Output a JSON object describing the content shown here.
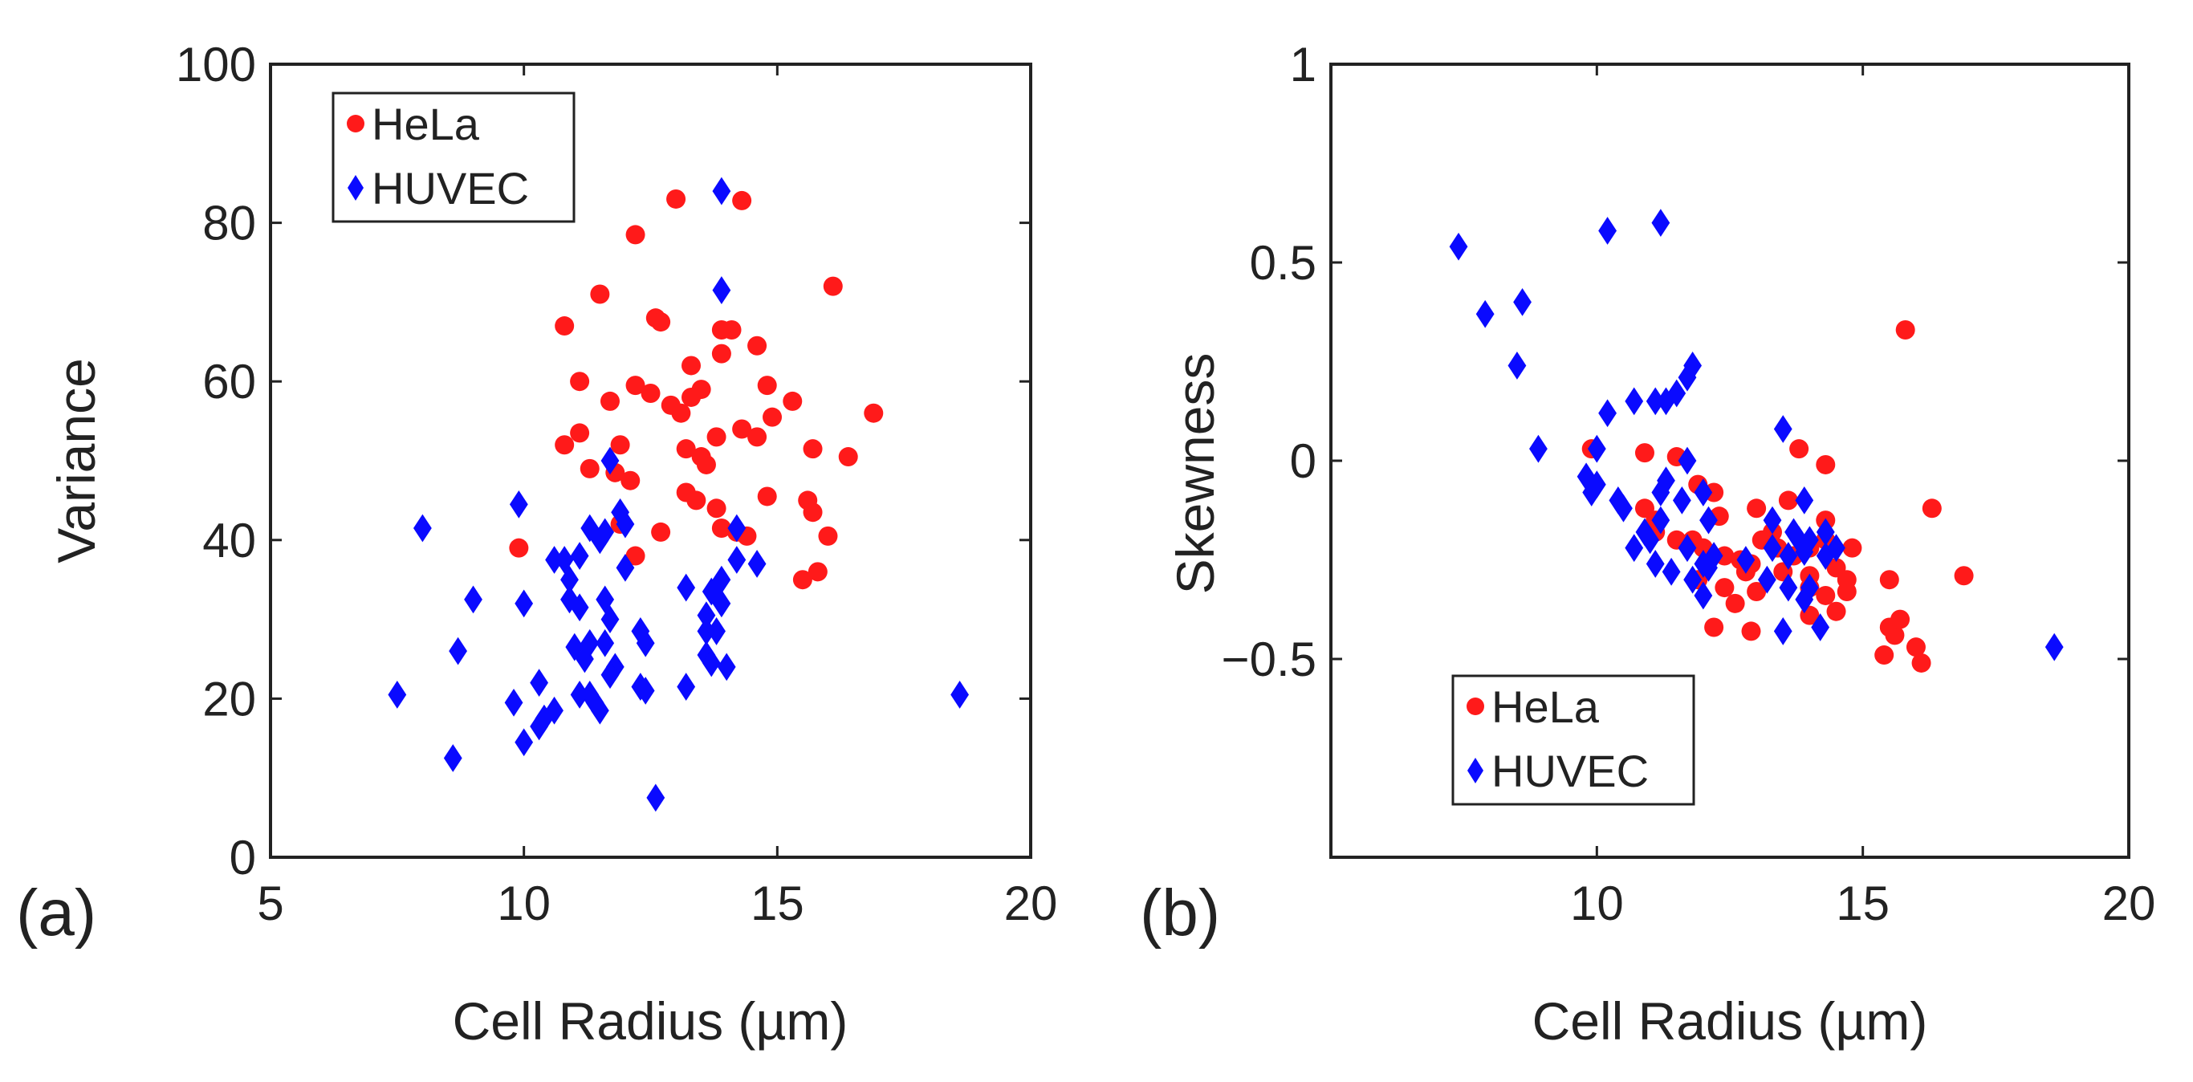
{
  "chart_data": [
    {
      "panel_label": "(a)",
      "type": "scatter",
      "xlabel": "Cell Radius (µm)",
      "ylabel": "Variance",
      "xlim": [
        5,
        20
      ],
      "ylim": [
        0,
        100
      ],
      "xticks": [
        "5",
        "10",
        "15",
        "20"
      ],
      "yticks": [
        "0",
        "20",
        "40",
        "60",
        "80",
        "100"
      ],
      "grid": false,
      "legend": {
        "position": "top-left",
        "entries": [
          "HeLa",
          "HUVEC"
        ]
      },
      "series": [
        {
          "name": "HeLa",
          "marker": "circle",
          "color": "#ff1a1a",
          "points": [
            [
              13.0,
              83.0
            ],
            [
              14.3,
              82.8
            ],
            [
              12.2,
              78.5
            ],
            [
              16.1,
              72.0
            ],
            [
              11.5,
              71.0
            ],
            [
              12.6,
              68.0
            ],
            [
              12.7,
              67.5
            ],
            [
              10.8,
              67.0
            ],
            [
              14.1,
              66.5
            ],
            [
              13.9,
              66.5
            ],
            [
              14.6,
              64.5
            ],
            [
              13.9,
              63.5
            ],
            [
              13.3,
              62.0
            ],
            [
              11.1,
              60.0
            ],
            [
              12.2,
              59.5
            ],
            [
              13.5,
              59.0
            ],
            [
              14.8,
              59.5
            ],
            [
              12.5,
              58.5
            ],
            [
              13.3,
              58.0
            ],
            [
              11.7,
              57.5
            ],
            [
              12.9,
              57.0
            ],
            [
              15.3,
              57.5
            ],
            [
              13.1,
              56.0
            ],
            [
              16.9,
              56.0
            ],
            [
              14.9,
              55.5
            ],
            [
              14.3,
              54.0
            ],
            [
              11.1,
              53.5
            ],
            [
              13.8,
              53.0
            ],
            [
              14.6,
              53.0
            ],
            [
              10.8,
              52.0
            ],
            [
              11.9,
              52.0
            ],
            [
              13.2,
              51.5
            ],
            [
              15.7,
              51.5
            ],
            [
              16.4,
              50.5
            ],
            [
              13.5,
              50.5
            ],
            [
              13.6,
              49.5
            ],
            [
              11.3,
              49.0
            ],
            [
              11.8,
              48.5
            ],
            [
              12.1,
              47.5
            ],
            [
              13.2,
              46.0
            ],
            [
              14.8,
              45.5
            ],
            [
              15.6,
              45.0
            ],
            [
              13.4,
              45.0
            ],
            [
              15.7,
              43.5
            ],
            [
              13.8,
              44.0
            ],
            [
              11.9,
              42.0
            ],
            [
              12.7,
              41.0
            ],
            [
              13.9,
              41.5
            ],
            [
              14.2,
              41.0
            ],
            [
              14.4,
              40.5
            ],
            [
              16.0,
              40.5
            ],
            [
              9.9,
              39.0
            ],
            [
              12.2,
              38.0
            ],
            [
              15.8,
              36.0
            ],
            [
              15.5,
              35.0
            ]
          ]
        },
        {
          "name": "HUVEC",
          "marker": "diamond",
          "color": "#0a0aff",
          "points": [
            [
              13.9,
              84.0
            ],
            [
              13.9,
              71.5
            ],
            [
              11.7,
              50.0
            ],
            [
              9.9,
              44.5
            ],
            [
              11.9,
              43.5
            ],
            [
              8.0,
              41.5
            ],
            [
              14.2,
              41.5
            ],
            [
              11.3,
              41.5
            ],
            [
              11.6,
              41.0
            ],
            [
              12.0,
              42.0
            ],
            [
              11.5,
              40.0
            ],
            [
              10.6,
              37.5
            ],
            [
              10.8,
              37.5
            ],
            [
              11.1,
              38.0
            ],
            [
              14.2,
              37.5
            ],
            [
              14.6,
              37.0
            ],
            [
              12.0,
              36.5
            ],
            [
              10.9,
              35.0
            ],
            [
              13.9,
              35.0
            ],
            [
              13.2,
              34.0
            ],
            [
              13.7,
              33.5
            ],
            [
              9.0,
              32.5
            ],
            [
              10.9,
              32.5
            ],
            [
              11.6,
              32.5
            ],
            [
              13.9,
              32.0
            ],
            [
              10.0,
              32.0
            ],
            [
              11.1,
              31.5
            ],
            [
              13.6,
              30.5
            ],
            [
              11.7,
              30.0
            ],
            [
              12.3,
              28.5
            ],
            [
              13.6,
              28.5
            ],
            [
              13.8,
              28.5
            ],
            [
              11.3,
              27.0
            ],
            [
              11.6,
              27.0
            ],
            [
              12.4,
              27.0
            ],
            [
              11.0,
              26.5
            ],
            [
              8.7,
              26.0
            ],
            [
              13.6,
              25.5
            ],
            [
              11.2,
              25.0
            ],
            [
              13.7,
              24.5
            ],
            [
              14.0,
              24.0
            ],
            [
              11.8,
              24.0
            ],
            [
              11.7,
              23.0
            ],
            [
              10.3,
              22.0
            ],
            [
              12.3,
              21.5
            ],
            [
              13.2,
              21.5
            ],
            [
              12.4,
              21.0
            ],
            [
              11.1,
              20.5
            ],
            [
              11.3,
              20.5
            ],
            [
              7.5,
              20.5
            ],
            [
              9.8,
              19.5
            ],
            [
              18.6,
              20.5
            ],
            [
              11.4,
              19.5
            ],
            [
              11.5,
              18.5
            ],
            [
              10.6,
              18.5
            ],
            [
              10.4,
              17.5
            ],
            [
              10.3,
              16.5
            ],
            [
              10.0,
              14.5
            ],
            [
              8.6,
              12.5
            ],
            [
              12.6,
              7.5
            ]
          ]
        }
      ]
    },
    {
      "panel_label": "(b)",
      "type": "scatter",
      "xlabel": "Cell Radius (µm)",
      "ylabel": "Skewness",
      "xlim": [
        5,
        20
      ],
      "ylim": [
        -1,
        1
      ],
      "xticks": [
        "10",
        "15",
        "20"
      ],
      "yticks": [
        "−0.5",
        "0",
        "0.5",
        "1"
      ],
      "ytick_values": [
        -0.5,
        0,
        0.5,
        1
      ],
      "xtick_values": [
        10,
        15,
        20
      ],
      "grid": false,
      "legend": {
        "position": "bottom-left",
        "entries": [
          "HeLa",
          "HUVEC"
        ]
      },
      "series": [
        {
          "name": "HeLa",
          "marker": "circle",
          "color": "#ff1a1a",
          "points": [
            [
              15.8,
              0.33
            ],
            [
              9.9,
              0.03
            ],
            [
              10.9,
              0.02
            ],
            [
              11.5,
              0.01
            ],
            [
              13.8,
              0.03
            ],
            [
              14.3,
              -0.01
            ],
            [
              16.3,
              -0.12
            ],
            [
              11.9,
              -0.06
            ],
            [
              12.2,
              -0.08
            ],
            [
              13.0,
              -0.12
            ],
            [
              13.6,
              -0.1
            ],
            [
              14.3,
              -0.15
            ],
            [
              10.9,
              -0.12
            ],
            [
              11.1,
              -0.15
            ],
            [
              12.3,
              -0.14
            ],
            [
              13.3,
              -0.18
            ],
            [
              11.1,
              -0.18
            ],
            [
              11.5,
              -0.2
            ],
            [
              11.8,
              -0.2
            ],
            [
              12.0,
              -0.22
            ],
            [
              12.4,
              -0.24
            ],
            [
              12.7,
              -0.25
            ],
            [
              13.1,
              -0.2
            ],
            [
              13.4,
              -0.22
            ],
            [
              13.7,
              -0.24
            ],
            [
              14.0,
              -0.22
            ],
            [
              14.3,
              -0.2
            ],
            [
              14.8,
              -0.22
            ],
            [
              12.9,
              -0.26
            ],
            [
              13.5,
              -0.28
            ],
            [
              14.5,
              -0.27
            ],
            [
              12.8,
              -0.28
            ],
            [
              14.0,
              -0.29
            ],
            [
              14.7,
              -0.3
            ],
            [
              15.5,
              -0.3
            ],
            [
              16.9,
              -0.29
            ],
            [
              14.0,
              -0.32
            ],
            [
              14.3,
              -0.34
            ],
            [
              14.7,
              -0.33
            ],
            [
              11.9,
              -0.3
            ],
            [
              12.4,
              -0.32
            ],
            [
              13.0,
              -0.33
            ],
            [
              12.6,
              -0.36
            ],
            [
              14.0,
              -0.39
            ],
            [
              14.5,
              -0.38
            ],
            [
              12.2,
              -0.42
            ],
            [
              12.9,
              -0.43
            ],
            [
              15.5,
              -0.42
            ],
            [
              15.6,
              -0.44
            ],
            [
              15.7,
              -0.4
            ],
            [
              16.0,
              -0.47
            ],
            [
              15.4,
              -0.49
            ],
            [
              16.1,
              -0.51
            ]
          ]
        },
        {
          "name": "HUVEC",
          "marker": "diamond",
          "color": "#0a0aff",
          "points": [
            [
              7.4,
              0.54
            ],
            [
              10.2,
              0.58
            ],
            [
              11.2,
              0.6
            ],
            [
              7.9,
              0.37
            ],
            [
              8.6,
              0.4
            ],
            [
              8.5,
              0.24
            ],
            [
              11.8,
              0.24
            ],
            [
              11.7,
              0.21
            ],
            [
              11.5,
              0.17
            ],
            [
              11.3,
              0.15
            ],
            [
              11.1,
              0.15
            ],
            [
              10.7,
              0.15
            ],
            [
              10.2,
              0.12
            ],
            [
              13.5,
              0.08
            ],
            [
              8.9,
              0.03
            ],
            [
              10.0,
              0.03
            ],
            [
              11.7,
              0.0
            ],
            [
              9.8,
              -0.04
            ],
            [
              10.0,
              -0.06
            ],
            [
              9.9,
              -0.08
            ],
            [
              10.4,
              -0.1
            ],
            [
              10.5,
              -0.12
            ],
            [
              11.3,
              -0.05
            ],
            [
              11.2,
              -0.08
            ],
            [
              11.6,
              -0.1
            ],
            [
              12.0,
              -0.08
            ],
            [
              13.9,
              -0.1
            ],
            [
              11.2,
              -0.15
            ],
            [
              12.1,
              -0.15
            ],
            [
              13.3,
              -0.15
            ],
            [
              13.7,
              -0.18
            ],
            [
              13.8,
              -0.2
            ],
            [
              14.0,
              -0.2
            ],
            [
              14.3,
              -0.18
            ],
            [
              10.9,
              -0.18
            ],
            [
              11.0,
              -0.2
            ],
            [
              10.7,
              -0.22
            ],
            [
              11.7,
              -0.22
            ],
            [
              12.2,
              -0.24
            ],
            [
              12.0,
              -0.26
            ],
            [
              12.8,
              -0.25
            ],
            [
              13.3,
              -0.22
            ],
            [
              13.6,
              -0.24
            ],
            [
              13.9,
              -0.23
            ],
            [
              14.3,
              -0.24
            ],
            [
              14.5,
              -0.22
            ],
            [
              11.1,
              -0.26
            ],
            [
              11.4,
              -0.28
            ],
            [
              11.8,
              -0.3
            ],
            [
              12.1,
              -0.27
            ],
            [
              13.2,
              -0.3
            ],
            [
              13.6,
              -0.32
            ],
            [
              12.0,
              -0.34
            ],
            [
              14.0,
              -0.32
            ],
            [
              13.9,
              -0.35
            ],
            [
              13.5,
              -0.43
            ],
            [
              14.2,
              -0.42
            ],
            [
              18.6,
              -0.47
            ]
          ]
        }
      ]
    }
  ]
}
